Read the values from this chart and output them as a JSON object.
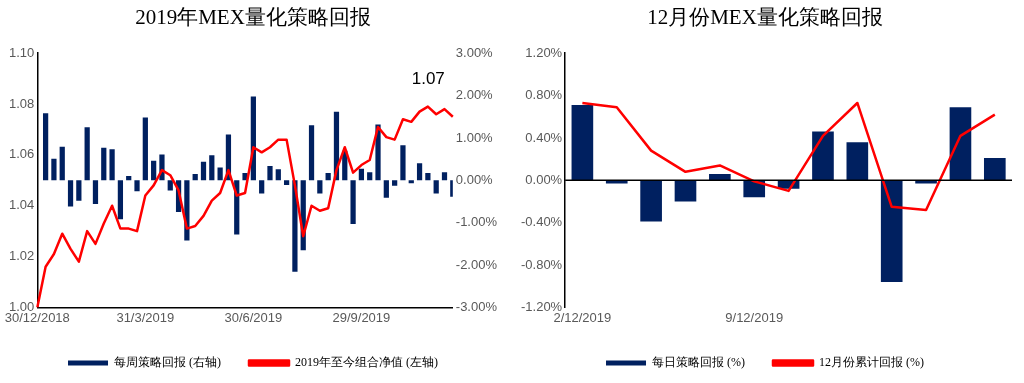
{
  "chart_data": [
    {
      "type": "bar",
      "title": "2019年MEX量化策略回报",
      "categories": [
        "30/12/2018",
        null,
        null,
        null,
        null,
        null,
        null,
        null,
        null,
        null,
        null,
        null,
        null,
        "31/3/2019",
        null,
        null,
        null,
        null,
        null,
        null,
        null,
        null,
        null,
        null,
        null,
        null,
        "30/6/2019",
        null,
        null,
        null,
        null,
        null,
        null,
        null,
        null,
        null,
        null,
        null,
        null,
        "29/9/2019",
        null,
        null,
        null,
        null,
        null,
        null,
        null,
        null,
        null,
        null,
        null
      ],
      "series": [
        {
          "name": "每周策略回报 (右轴)",
          "axis": "y2",
          "color": "#002060",
          "values": [
            null,
            1.58,
            0.51,
            0.79,
            -0.62,
            -0.48,
            1.25,
            -0.56,
            0.77,
            0.73,
            -0.92,
            0.1,
            -0.26,
            1.48,
            0.46,
            0.61,
            -0.24,
            -0.75,
            -1.42,
            0.15,
            0.44,
            0.59,
            0.3,
            1.08,
            -1.28,
            0.17,
            1.98,
            -0.31,
            0.34,
            0.26,
            -0.11,
            -2.16,
            -1.65,
            1.3,
            -0.31,
            0.17,
            1.62,
            0.7,
            -1.03,
            0.27,
            0.19,
            1.32,
            -0.41,
            -0.13,
            0.83,
            -0.07,
            0.4,
            0.17,
            -0.31,
            0.19,
            -0.39
          ]
        },
        {
          "name": "2019年至今组合净值 (左轴)",
          "type": "line",
          "color": "#ff0000",
          "values": [
            1.0,
            1.016,
            1.021,
            1.029,
            1.023,
            1.018,
            1.03,
            1.025,
            1.033,
            1.04,
            1.031,
            1.031,
            1.03,
            1.044,
            1.048,
            1.054,
            1.052,
            1.046,
            1.031,
            1.032,
            1.036,
            1.042,
            1.045,
            1.054,
            1.044,
            1.045,
            1.063,
            1.061,
            1.063,
            1.066,
            1.066,
            1.048,
            1.028,
            1.04,
            1.038,
            1.039,
            1.054,
            1.063,
            1.053,
            1.056,
            1.058,
            1.071,
            1.067,
            1.066,
            1.074,
            1.073,
            1.077,
            1.079,
            1.076,
            1.078,
            1.075
          ]
        }
      ],
      "ylim": [
        1.0,
        1.1
      ],
      "yticks": [
        {
          "value": 1.0,
          "label": "1.00"
        },
        {
          "value": 1.02,
          "label": "1.02"
        },
        {
          "value": 1.04,
          "label": "1.04"
        },
        {
          "value": 1.06,
          "label": "1.06"
        },
        {
          "value": 1.08,
          "label": "1.08"
        },
        {
          "value": 1.1,
          "label": "1.10"
        }
      ],
      "y2lim": [
        -3,
        3
      ],
      "y2ticks": [
        {
          "value": -3,
          "label": "-3.00%"
        },
        {
          "value": -2,
          "label": "-2.00%"
        },
        {
          "value": -1,
          "label": "-1.00%"
        },
        {
          "value": 0,
          "label": "0.00%"
        },
        {
          "value": 1,
          "label": "1.00%"
        },
        {
          "value": 2,
          "label": "2.00%"
        },
        {
          "value": 3,
          "label": "3.00%"
        }
      ],
      "annotations": [
        "1.07"
      ],
      "grid": false,
      "legend": "bottom",
      "marker": "none"
    },
    {
      "type": "bar",
      "title": "12月份MEX量化策略回报",
      "categories": [
        "2/12/2019",
        null,
        null,
        null,
        null,
        "9/12/2019",
        null,
        null,
        null,
        null,
        null,
        null,
        null
      ],
      "series": [
        {
          "name": "每日策略回报 (%)",
          "color": "#002060",
          "values": [
            0.71,
            -0.03,
            -0.39,
            -0.2,
            0.06,
            -0.16,
            -0.08,
            0.46,
            0.36,
            -0.96,
            -0.03,
            0.69,
            0.21
          ]
        },
        {
          "name": "12月份累计回报 (%)",
          "type": "line",
          "color": "#ff0000",
          "values": [
            0.73,
            0.69,
            0.28,
            0.08,
            0.14,
            -0.01,
            -0.1,
            0.42,
            0.73,
            -0.25,
            -0.28,
            0.42,
            0.62
          ]
        }
      ],
      "ylim": [
        -1.2,
        1.2
      ],
      "yticks": [
        {
          "value": -1.2,
          "label": "-1.20%"
        },
        {
          "value": -0.8,
          "label": "-0.80%"
        },
        {
          "value": -0.4,
          "label": "-0.40%"
        },
        {
          "value": 0,
          "label": "0.00%"
        },
        {
          "value": 0.4,
          "label": "0.40%"
        },
        {
          "value": 0.8,
          "label": "0.80%"
        },
        {
          "value": 1.2,
          "label": "1.20%"
        }
      ],
      "ref_lines": [
        {
          "axis": "y",
          "value": 0,
          "color": "#000000"
        }
      ],
      "grid": false,
      "legend": "bottom",
      "marker": "none"
    }
  ]
}
